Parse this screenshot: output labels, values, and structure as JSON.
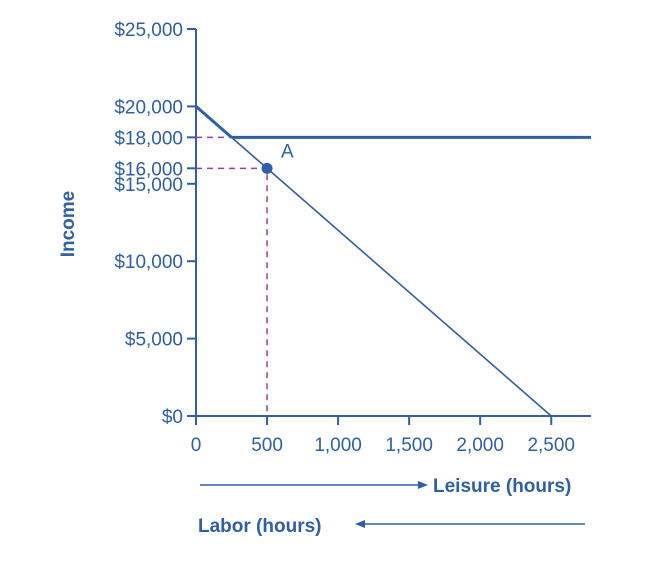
{
  "chart_data": {
    "type": "line",
    "title": "",
    "xlabel": "Leisure (hours)",
    "xlabel_reverse": "Labor (hours)",
    "ylabel": "Income",
    "xlim": [
      0,
      2780
    ],
    "ylim": [
      0,
      25000
    ],
    "x_ticks": [
      0,
      500,
      1000,
      1500,
      2000,
      2500
    ],
    "x_tick_labels": [
      "0",
      "500",
      "1,000",
      "1,500",
      "2,000",
      "2,500"
    ],
    "y_ticks": [
      0,
      5000,
      10000,
      15000,
      16000,
      18000,
      20000,
      25000
    ],
    "y_tick_labels": [
      "$0",
      "$5,000",
      "$10,000",
      "$15,000",
      "$16,000",
      "$18,000",
      "$20,000",
      "$25,000"
    ],
    "grid": false,
    "series": [
      {
        "points": [
          [
            0,
            20000
          ],
          [
            250,
            18000
          ],
          [
            2500,
            0
          ]
        ]
      },
      {
        "points": [
          [
            250,
            18000
          ],
          [
            2780,
            18000
          ]
        ]
      }
    ],
    "guides": [
      {
        "points": [
          [
            0,
            18000
          ],
          [
            250,
            18000
          ]
        ]
      },
      {
        "points": [
          [
            0,
            16000
          ],
          [
            500,
            16000
          ],
          [
            500,
            0
          ]
        ]
      }
    ],
    "annotations": [
      {
        "label": "A",
        "x": 500,
        "y": 16000
      }
    ],
    "colors": {
      "line": "#2e5fa8",
      "guide": "#9b3fa0",
      "text": "#2e5fa8"
    }
  }
}
